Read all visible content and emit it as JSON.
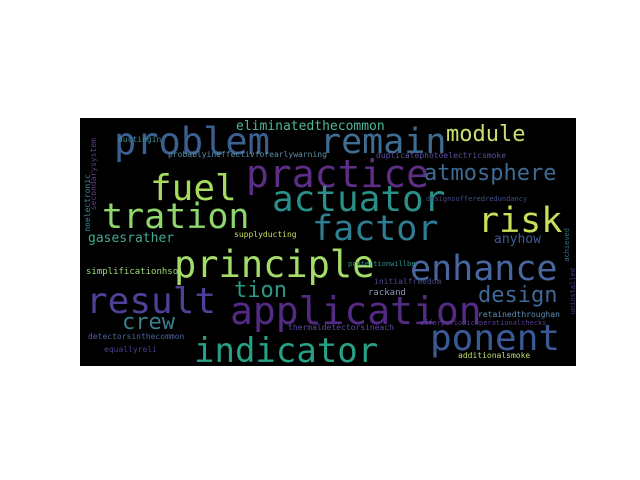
{
  "figure": {
    "background": "#ffffff",
    "cloud_background": "#000000"
  },
  "words": [
    {
      "text": "problem",
      "color": "#3b5f8f"
    },
    {
      "text": "remain",
      "color": "#3f6c91"
    },
    {
      "text": "module",
      "color": "#c8e06a"
    },
    {
      "text": "practice",
      "color": "#5c2e86"
    },
    {
      "text": "fuel",
      "color": "#a6dc5e"
    },
    {
      "text": "atmosphere",
      "color": "#3e6b93"
    },
    {
      "text": "actuator",
      "color": "#2a8f88"
    },
    {
      "text": "tration",
      "color": "#8fd66d"
    },
    {
      "text": "factor",
      "color": "#2d7e92"
    },
    {
      "text": "risk",
      "color": "#c6e05c"
    },
    {
      "text": "principle",
      "color": "#a4dc6a"
    },
    {
      "text": "enhance",
      "color": "#4766a0"
    },
    {
      "text": "result",
      "color": "#4f3f96"
    },
    {
      "text": "application",
      "color": "#542b84"
    },
    {
      "text": "design",
      "color": "#3d6898"
    },
    {
      "text": "tion",
      "color": "#2b9884"
    },
    {
      "text": "crew",
      "color": "#3a7f8c"
    },
    {
      "text": "ponent",
      "color": "#3a5a96"
    },
    {
      "text": "indicator",
      "color": "#27a085"
    },
    {
      "text": "eliminatedthecommon",
      "color": "#4fb69a"
    },
    {
      "text": "probablyineffectivforearlywarning",
      "color": "#5a8fa5"
    },
    {
      "text": "duplicatephotoelectricsmoke",
      "color": "#5b4ea0"
    },
    {
      "text": "gasesrather",
      "color": "#44a695"
    },
    {
      "text": "anyhow",
      "color": "#3c5b97"
    },
    {
      "text": "supplyducting",
      "color": "#c8df63"
    },
    {
      "text": "simplificationhso",
      "color": "#9fd87a"
    },
    {
      "text": "rackand",
      "color": "#8c95b0"
    },
    {
      "text": "initialfreedom",
      "color": "#4b4a8c"
    },
    {
      "text": "retainedthroughan",
      "color": "#5d8fb6"
    },
    {
      "text": "thermaldetectorsineach",
      "color": "#5d4aa0"
    },
    {
      "text": "offerperiodicoperationalchecks",
      "color": "#5a3d8f"
    },
    {
      "text": "detectorsinthecommon",
      "color": "#4b65a0"
    },
    {
      "text": "equallyreli",
      "color": "#4a3e8c"
    },
    {
      "text": "additionalsmoke",
      "color": "#c0de6e"
    },
    {
      "text": "ductingin",
      "color": "#3f8e90"
    },
    {
      "text": "protectionwillbe",
      "color": "#2b9690"
    },
    {
      "text": "designsofferedredundancy",
      "color": "#3d4f8a"
    },
    {
      "text": "secondarysystem",
      "color": "#5f3c8a"
    },
    {
      "text": "noelectronic",
      "color": "#3d8a90"
    },
    {
      "text": "achieved",
      "color": "#2e7688"
    },
    {
      "text": "uninstalled",
      "color": "#4a3a8a"
    }
  ]
}
